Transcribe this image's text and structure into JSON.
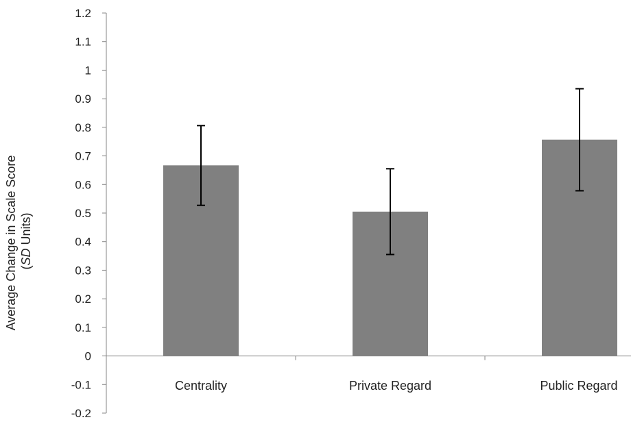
{
  "chart_data": {
    "type": "bar",
    "title": "",
    "xlabel": "",
    "ylabel": "Average Change in Scale Score",
    "ylabel_line2_italic": "SD",
    "ylabel_line2_rest": " Units)",
    "ylabel_line2_open": "(",
    "categories": [
      "Centrality",
      "Private Regard",
      "Public Regard"
    ],
    "values": [
      0.667,
      0.505,
      0.757
    ],
    "error_low": [
      0.527,
      0.355,
      0.578
    ],
    "error_high": [
      0.806,
      0.655,
      0.935
    ],
    "ylim": [
      -0.2,
      1.2
    ],
    "yticks": [
      -0.2,
      -0.1,
      0,
      0.1,
      0.2,
      0.3,
      0.4,
      0.5,
      0.6,
      0.7,
      0.8,
      0.9,
      1,
      1.1,
      1.2
    ],
    "ytick_labels": [
      "-0.2",
      "-0.1",
      "0",
      "0.1",
      "0.2",
      "0.3",
      "0.4",
      "0.5",
      "0.6",
      "0.7",
      "0.8",
      "0.9",
      "1",
      "1.1",
      "1.2"
    ],
    "grid": false,
    "legend": "none",
    "colors": {
      "bar": "#808080",
      "axis": "#868686",
      "error": "#000000"
    }
  }
}
